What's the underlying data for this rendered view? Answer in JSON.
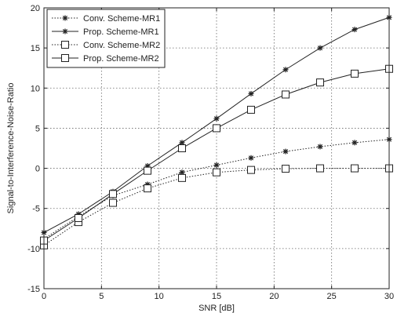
{
  "chart_data": {
    "type": "line",
    "xlabel": "SNR [dB]",
    "ylabel": "Signal-to-Interference-Noise-Ratio",
    "xlim": [
      0,
      30
    ],
    "ylim": [
      -15,
      20
    ],
    "xticks": [
      0,
      5,
      10,
      15,
      20,
      25,
      30
    ],
    "yticks": [
      -15,
      -10,
      -5,
      0,
      5,
      10,
      15,
      20
    ],
    "grid": true,
    "legend_position": "top-left",
    "x": [
      0,
      3,
      6,
      9,
      12,
      15,
      18,
      21,
      24,
      27,
      30
    ],
    "series": [
      {
        "name": "Conv. Scheme-MR1",
        "line": "dotted",
        "marker": "star",
        "values": [
          -8.8,
          -6.0,
          -3.4,
          -2.0,
          -0.5,
          0.4,
          1.3,
          2.1,
          2.7,
          3.2,
          3.6
        ]
      },
      {
        "name": "Prop. Scheme-MR1",
        "line": "solid",
        "marker": "star",
        "values": [
          -8.0,
          -5.7,
          -2.9,
          0.3,
          3.2,
          6.2,
          9.3,
          12.3,
          15.0,
          17.3,
          18.8
        ]
      },
      {
        "name": "Conv. Scheme-MR2",
        "line": "dotted",
        "marker": "square",
        "values": [
          -9.6,
          -6.7,
          -4.3,
          -2.5,
          -1.2,
          -0.5,
          -0.2,
          -0.05,
          0.0,
          0.0,
          0.0
        ]
      },
      {
        "name": "Prop. Scheme-MR2",
        "line": "solid",
        "marker": "square",
        "values": [
          -9.0,
          -6.2,
          -3.2,
          -0.3,
          2.5,
          5.0,
          7.3,
          9.2,
          10.7,
          11.8,
          12.4
        ]
      }
    ]
  }
}
